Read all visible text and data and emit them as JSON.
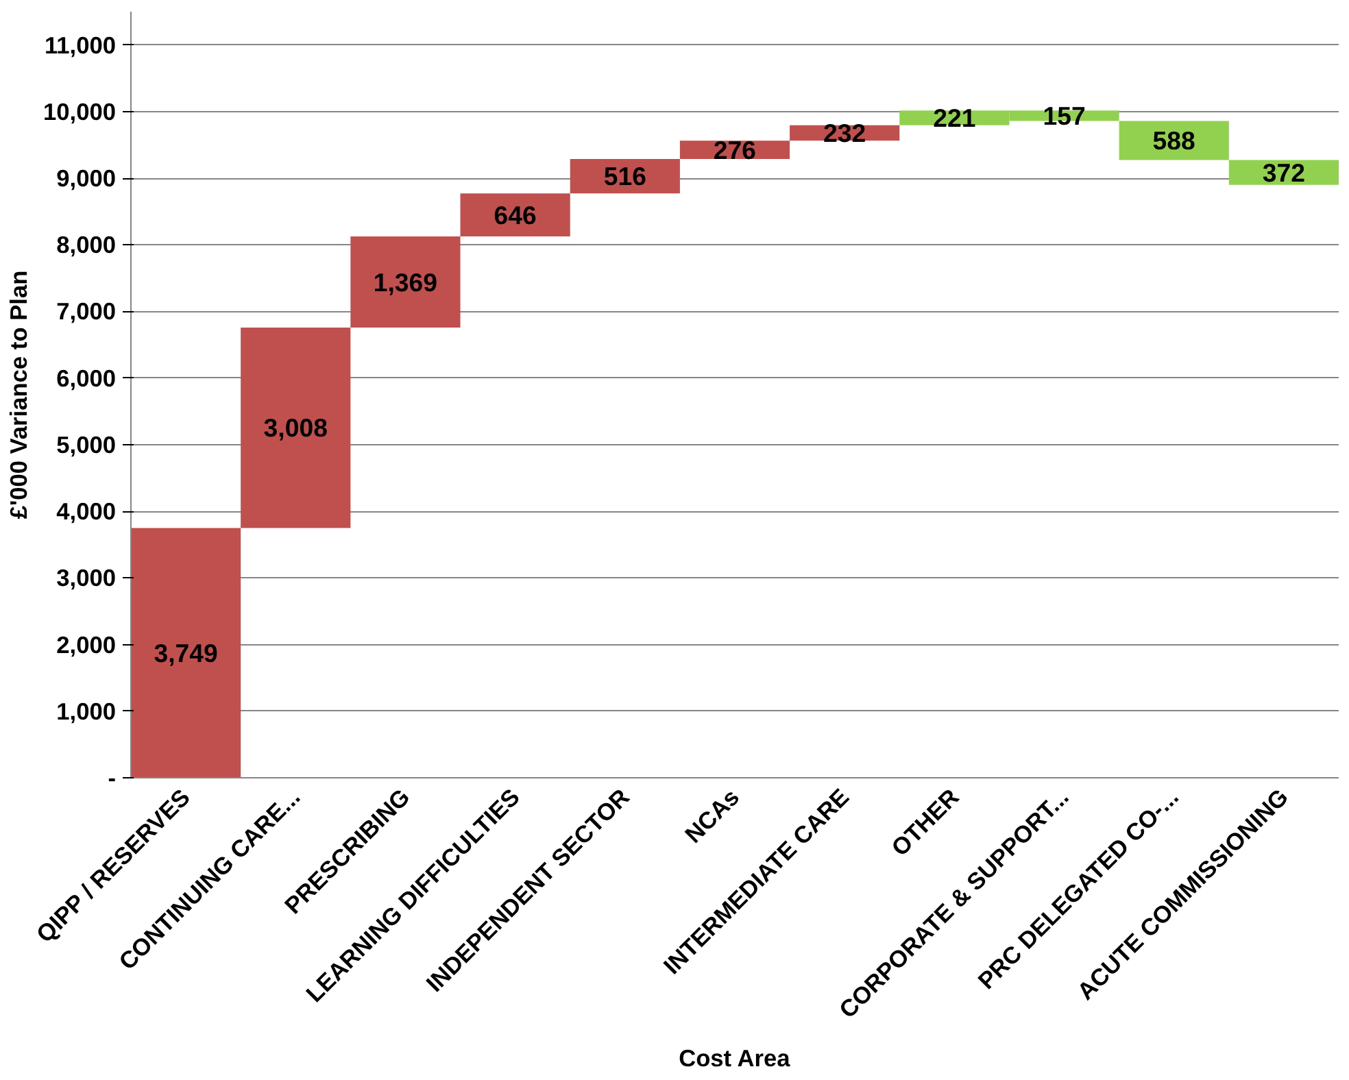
{
  "chart_data": {
    "type": "bar",
    "xlabel": "Cost Area",
    "ylabel": "£'000 Variance to Plan",
    "categories": [
      "QIPP / RESERVES",
      "CONTINUING CARE...",
      "PRESCRIBING",
      "LEARNING DIFFICULTIES",
      "INDEPENDENT SECTOR",
      "NCAs",
      "INTERMEDIATE CARE",
      "OTHER",
      "CORPORATE & SUPPORT...",
      "PRC DELEGATED CO-...",
      "ACUTE COMMISSIONING"
    ],
    "values": [
      3749,
      3008,
      1369,
      646,
      516,
      276,
      232,
      221,
      157,
      588,
      372
    ],
    "base": [
      0,
      3749,
      6757,
      8126,
      8772,
      9288,
      9564,
      9796,
      9860,
      9272,
      8900
    ],
    "colors": [
      "#c0504d",
      "#c0504d",
      "#c0504d",
      "#c0504d",
      "#c0504d",
      "#c0504d",
      "#c0504d",
      "#92d050",
      "#92d050",
      "#92d050",
      "#92d050"
    ],
    "value_labels": [
      "3,749",
      "3,008",
      "1,369",
      "646",
      "516",
      "276",
      "232",
      "221",
      "157",
      "588",
      "372"
    ],
    "ylim": [
      0,
      11500
    ],
    "yticks": [
      {
        "value": 0,
        "label": "-"
      },
      {
        "value": 1000,
        "label": "1,000"
      },
      {
        "value": 2000,
        "label": "2,000"
      },
      {
        "value": 3000,
        "label": "3,000"
      },
      {
        "value": 4000,
        "label": "4,000"
      },
      {
        "value": 5000,
        "label": "5,000"
      },
      {
        "value": 6000,
        "label": "6,000"
      },
      {
        "value": 7000,
        "label": "7,000"
      },
      {
        "value": 8000,
        "label": "8,000"
      },
      {
        "value": 9000,
        "label": "9,000"
      },
      {
        "value": 10000,
        "label": "10,000"
      },
      {
        "value": 11000,
        "label": "11,000"
      }
    ],
    "grid": "y"
  }
}
